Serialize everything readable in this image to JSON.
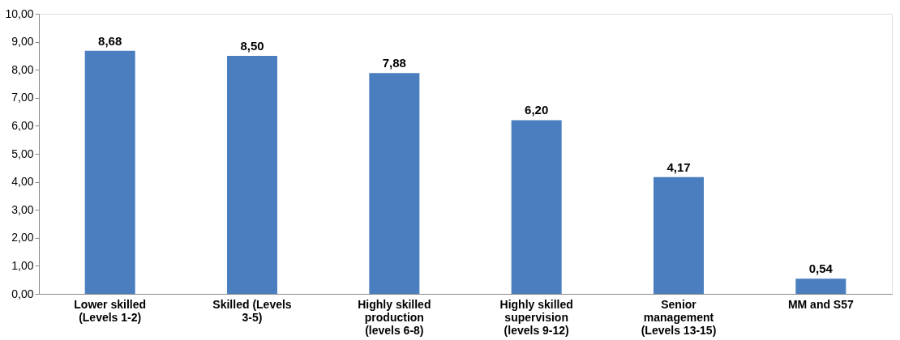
{
  "chart_data": {
    "type": "bar",
    "categories": [
      "Lower skilled (Levels 1-2)",
      "Skilled (Levels 3-5)",
      "Highly skilled production (levels 6-8)",
      "Highly skilled supervision (levels 9-12)",
      "Senior management (Levels 13-15)",
      "MM and S57"
    ],
    "values": [
      8.68,
      8.5,
      7.88,
      6.2,
      4.17,
      0.54
    ],
    "value_labels": [
      "8,68",
      "8,50",
      "7,88",
      "6,20",
      "4,17",
      "0,54"
    ],
    "color": "#4a7ebf",
    "ylim": [
      0,
      10
    ],
    "yticks": [
      {
        "value": 0,
        "label": "0,00"
      },
      {
        "value": 1,
        "label": "1,00"
      },
      {
        "value": 2,
        "label": "2,00"
      },
      {
        "value": 3,
        "label": "3,00"
      },
      {
        "value": 4,
        "label": "4,00"
      },
      {
        "value": 5,
        "label": "5,00"
      },
      {
        "value": 6,
        "label": "6,00"
      },
      {
        "value": 7,
        "label": "7,00"
      },
      {
        "value": 8,
        "label": "8,00"
      },
      {
        "value": 9,
        "label": "9,00"
      },
      {
        "value": 10,
        "label": "10,00"
      }
    ],
    "grid": false
  }
}
